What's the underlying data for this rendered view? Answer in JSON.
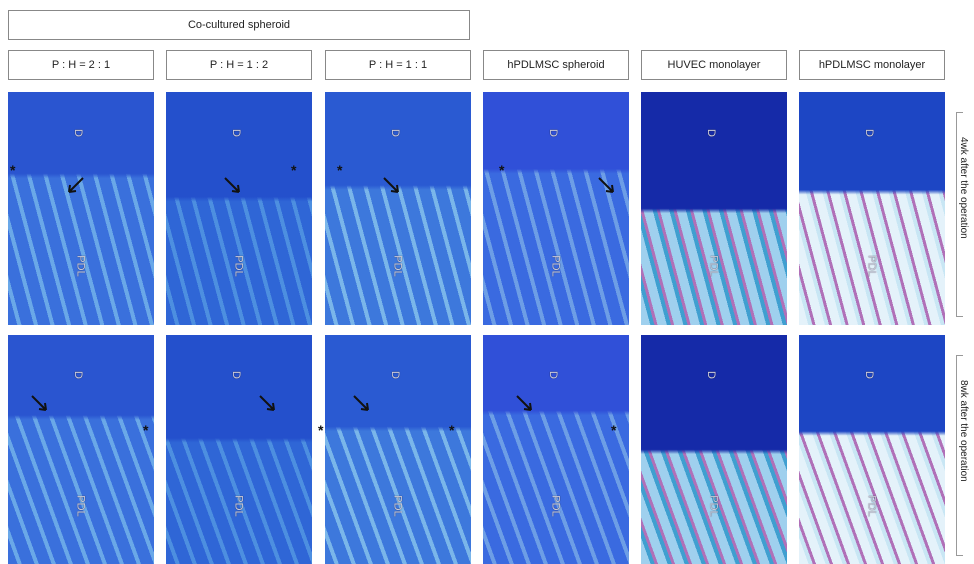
{
  "header": {
    "title": "Co-cultured spheroid"
  },
  "columns": [
    "P : H = 2 : 1",
    "P : H = 1 : 2",
    "P : H = 1 : 1",
    "hPDLMSC spheroid",
    "HUVEC monolayer",
    "hPDLMSC monolayer"
  ],
  "rows": [
    "4wk after the operation",
    "8wk after the operation"
  ],
  "labels": {
    "dentin": "D",
    "pdl": "PDL",
    "marker": "*"
  }
}
